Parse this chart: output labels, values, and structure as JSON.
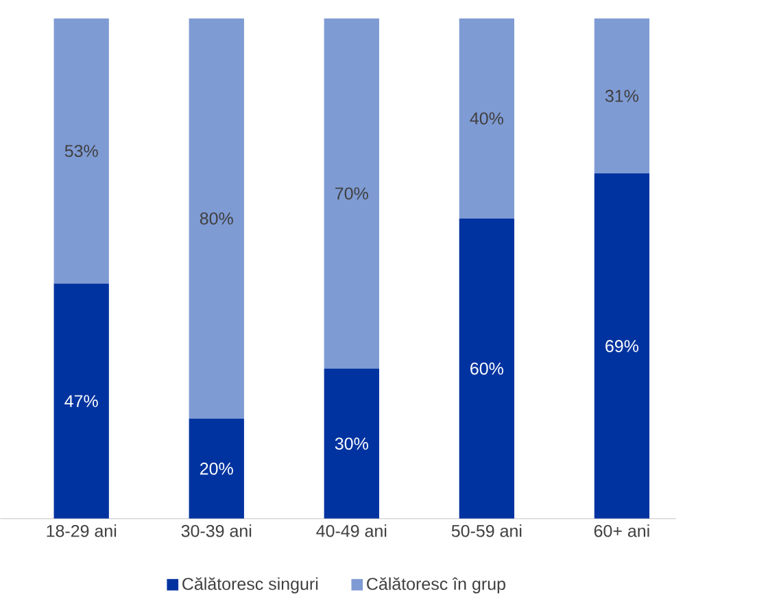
{
  "chart_data": {
    "type": "bar",
    "stacked": true,
    "categories": [
      "18-29 ani",
      "30-39 ani",
      "40-49 ani",
      "50-59 ani",
      "60+ ani"
    ],
    "series": [
      {
        "name": "Călătoresc singuri",
        "color": "#0033a0",
        "values": [
          47,
          20,
          30,
          60,
          69
        ],
        "value_labels": [
          "47%",
          "20%",
          "30%",
          "60%",
          "69%"
        ]
      },
      {
        "name": "Călătoresc în grup",
        "color": "#7f9bd4",
        "values": [
          53,
          80,
          70,
          40,
          31
        ],
        "value_labels": [
          "53%",
          "80%",
          "70%",
          "40%",
          "31%"
        ]
      }
    ],
    "ylim": [
      0,
      100
    ],
    "tick_labels": "x",
    "legend": "bottom"
  }
}
